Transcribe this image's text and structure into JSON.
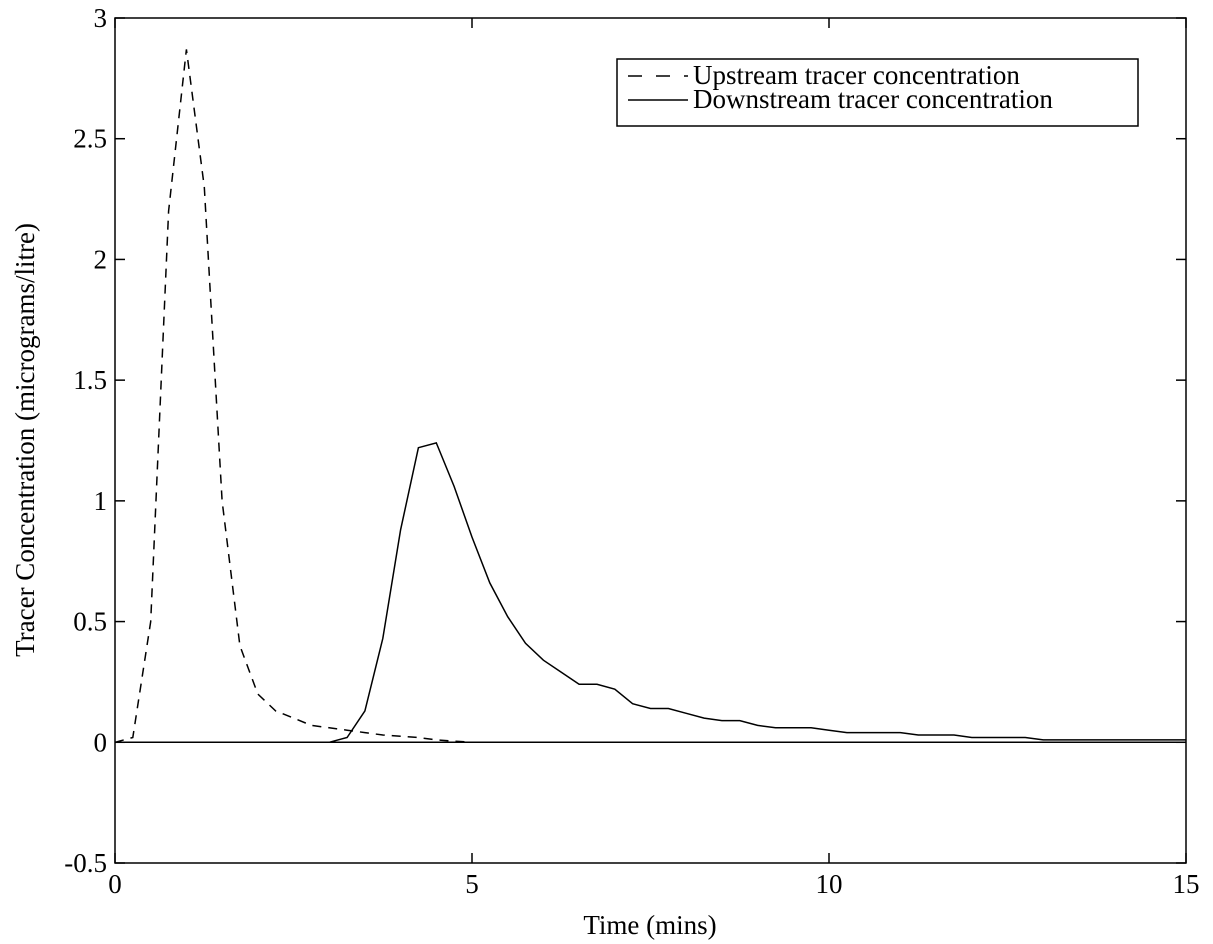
{
  "chart_data": {
    "type": "line",
    "title": "",
    "xlabel": "Time (mins)",
    "ylabel": "Tracer Concentration (micrograms/litre)",
    "xlim": [
      0,
      15
    ],
    "ylim": [
      -0.5,
      3
    ],
    "xticks": [
      0,
      5,
      10,
      15
    ],
    "xtick_labels": [
      "0",
      "5",
      "10",
      "15"
    ],
    "yticks": [
      -0.5,
      0,
      0.5,
      1,
      1.5,
      2,
      2.5,
      3
    ],
    "ytick_labels": [
      "-0.5",
      "0",
      "0.5",
      "1",
      "1.5",
      "2",
      "2.5",
      "3"
    ],
    "grid": false,
    "legend_position": "top-right",
    "zero_line": true,
    "series": [
      {
        "name": "Upstream tracer concentration",
        "style": "dashed",
        "color": "#000000",
        "x": [
          0,
          0.25,
          0.5,
          0.75,
          1.0,
          1.25,
          1.5,
          1.75,
          2.0,
          2.25,
          2.5,
          2.75,
          3.0,
          3.25,
          3.5,
          3.75,
          4.0,
          4.25,
          4.5,
          4.75,
          5.0,
          6.0,
          8.0,
          10.0,
          15.0
        ],
        "y": [
          0,
          0.02,
          0.5,
          2.2,
          2.87,
          2.3,
          1.0,
          0.4,
          0.2,
          0.13,
          0.1,
          0.07,
          0.06,
          0.05,
          0.04,
          0.03,
          0.025,
          0.02,
          0.01,
          0.005,
          0,
          0,
          0,
          0,
          0
        ]
      },
      {
        "name": "Downstream tracer concentration",
        "style": "solid",
        "color": "#000000",
        "x": [
          0,
          3.0,
          3.25,
          3.5,
          3.75,
          4.0,
          4.25,
          4.5,
          4.75,
          5.0,
          5.25,
          5.5,
          5.75,
          6.0,
          6.25,
          6.5,
          6.75,
          7.0,
          7.25,
          7.5,
          7.75,
          8.0,
          8.25,
          8.5,
          8.75,
          9.0,
          9.25,
          9.5,
          9.75,
          10.0,
          10.25,
          10.5,
          10.75,
          11.0,
          11.25,
          11.5,
          11.75,
          12.0,
          12.25,
          12.5,
          12.75,
          13.0,
          13.25,
          13.5,
          13.75,
          14.0,
          14.25,
          14.5,
          14.75,
          15.0
        ],
        "y": [
          0,
          0,
          0.02,
          0.13,
          0.43,
          0.88,
          1.22,
          1.24,
          1.06,
          0.85,
          0.66,
          0.52,
          0.41,
          0.34,
          0.29,
          0.24,
          0.24,
          0.22,
          0.16,
          0.14,
          0.14,
          0.12,
          0.1,
          0.09,
          0.09,
          0.07,
          0.06,
          0.06,
          0.06,
          0.05,
          0.04,
          0.04,
          0.04,
          0.04,
          0.03,
          0.03,
          0.03,
          0.02,
          0.02,
          0.02,
          0.02,
          0.01,
          0.01,
          0.01,
          0.01,
          0.01,
          0.01,
          0.01,
          0.01,
          0.01
        ]
      }
    ]
  }
}
